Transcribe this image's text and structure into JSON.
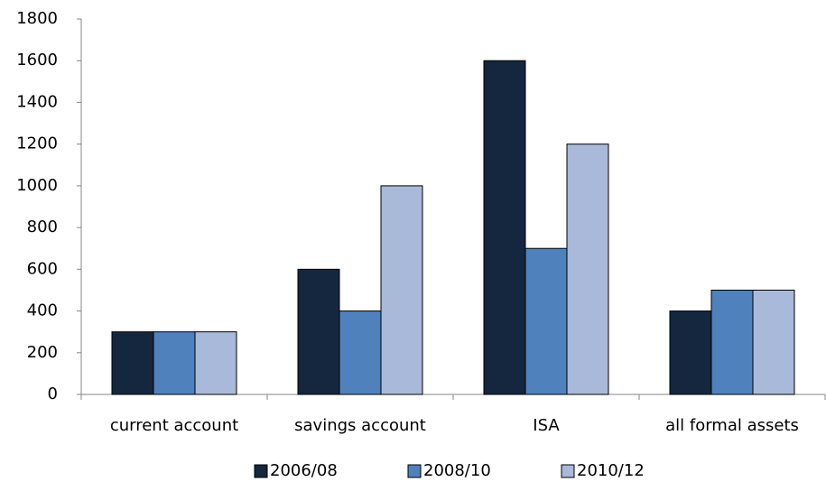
{
  "chart_data": {
    "type": "bar",
    "categories": [
      "current account",
      "savings account",
      "ISA",
      "all formal assets"
    ],
    "series": [
      {
        "name": "2006/08",
        "color": "#14273f",
        "values": [
          300,
          600,
          1600,
          400
        ]
      },
      {
        "name": "2008/10",
        "color": "#4f81bd",
        "values": [
          300,
          400,
          700,
          500
        ]
      },
      {
        "name": "2010/12",
        "color": "#a9b9d9",
        "values": [
          300,
          1000,
          1200,
          500
        ]
      }
    ],
    "ylim": [
      0,
      1800
    ],
    "yticks": [
      0,
      200,
      400,
      600,
      800,
      1000,
      1200,
      1400,
      1600,
      1800
    ],
    "grid": false,
    "legend": "bottom"
  }
}
